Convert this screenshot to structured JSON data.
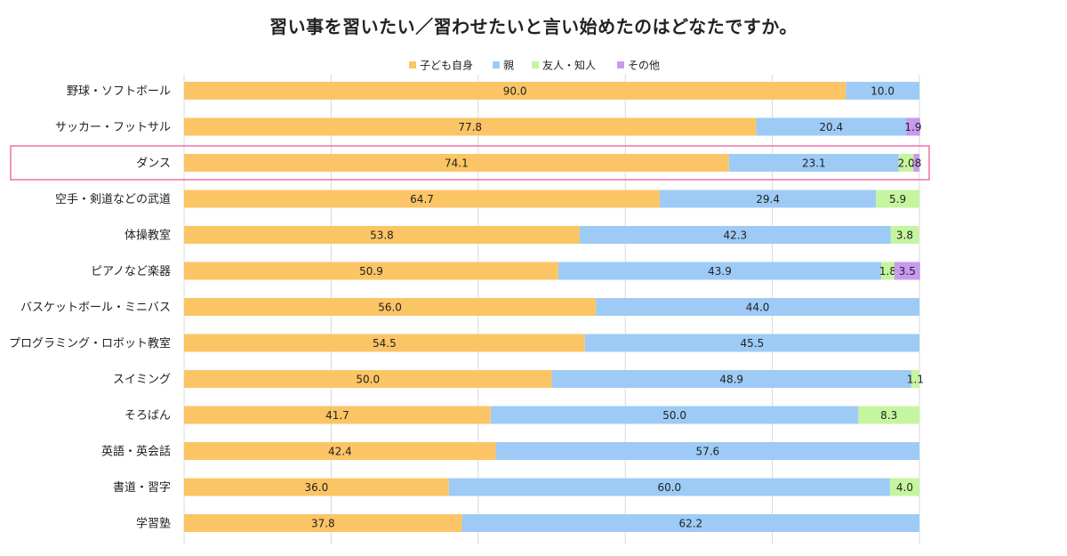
{
  "chart_data": {
    "type": "bar",
    "orientation": "horizontal-stacked-100",
    "title": "習い事を習いたい／習わせたいと言い始めたのはどなたですか。",
    "legend_position": "top",
    "grid": true,
    "xlim": [
      0,
      100
    ],
    "categories": [
      "野球・ソフトボール",
      "サッカー・フットサル",
      "ダンス",
      "空手・剣道などの武道",
      "体操教室",
      "ピアノなど楽器",
      "バスケットボール・ミニバス",
      "プログラミング・ロボット教室",
      "スイミング",
      "そろばん",
      "英語・英会話",
      "書道・習字",
      "学習塾"
    ],
    "series": [
      {
        "name": "子ども自身",
        "color": "#fbc566",
        "values": [
          90.0,
          77.8,
          74.1,
          64.7,
          53.8,
          50.9,
          56.0,
          54.5,
          50.0,
          41.7,
          42.4,
          36.0,
          37.8
        ],
        "labels": [
          "90.0",
          "77.8",
          "74.1",
          "64.7",
          "53.8",
          "50.9",
          "56.0",
          "54.5",
          "50.0",
          "41.7",
          "42.4",
          "36.0",
          "37.8"
        ]
      },
      {
        "name": "親",
        "color": "#9dcbf5",
        "values": [
          10.0,
          20.4,
          23.1,
          29.4,
          42.3,
          43.9,
          44.0,
          45.5,
          48.9,
          50.0,
          57.6,
          60.0,
          62.2
        ],
        "labels": [
          "10.0",
          "20.4",
          "23.1",
          "29.4",
          "42.3",
          "43.9",
          "44.0",
          "45.5",
          "48.9",
          "50.0",
          "57.6",
          "60.0",
          "62.2"
        ]
      },
      {
        "name": "友人・知人",
        "color": "#c6f5a0",
        "values": [
          0,
          0,
          2.0,
          5.9,
          3.8,
          1.8,
          0,
          0,
          1.1,
          8.3,
          0,
          4.0,
          0
        ],
        "labels": [
          "",
          "",
          "2.0",
          "5.9",
          "3.8",
          "1.8",
          "",
          "",
          "1.1",
          "8.3",
          "",
          "4.0",
          ""
        ]
      },
      {
        "name": "その他",
        "color": "#c79af0",
        "values": [
          0,
          1.9,
          0.8,
          0,
          0,
          3.5,
          0,
          0,
          0,
          0,
          0,
          0,
          0
        ],
        "labels": [
          "",
          "1.9",
          ".8",
          "",
          "",
          "3.5",
          "",
          "",
          "",
          "",
          "",
          "",
          ""
        ]
      }
    ],
    "highlight_category": "ダンス",
    "highlight_color": "#ef6fa8"
  }
}
